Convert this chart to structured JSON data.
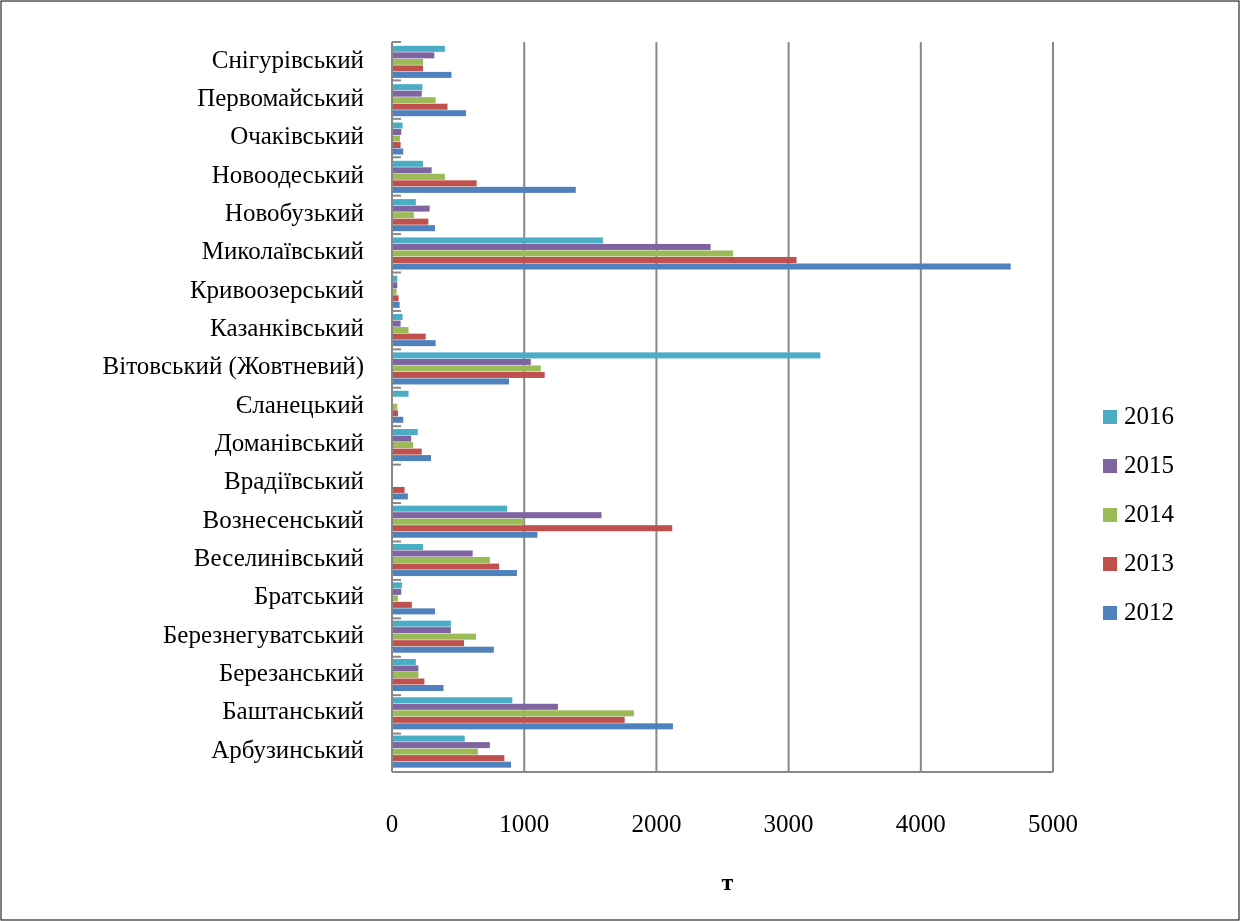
{
  "chart_data": {
    "type": "bar",
    "orientation": "horizontal",
    "xlabel": "т",
    "categories": [
      "Снігурівський",
      "Первомайський",
      "Очаківський",
      "Новоодеський",
      "Новобузький",
      "Миколаївський",
      "Кривоозерський",
      "Казанківський",
      "Вітовський (Жовтневий)",
      "Єланецький",
      "Доманівський",
      "Врадіївський",
      "Вознесенський",
      "Веселинівський",
      "Братський",
      "Березнегуватський",
      "Березанський",
      "Баштанський",
      "Арбузинський"
    ],
    "series": [
      {
        "name": "2012",
        "color": "#4f81bd",
        "values": [
          450,
          560,
          85,
          1390,
          325,
          4680,
          58,
          330,
          885,
          85,
          295,
          120,
          1100,
          945,
          325,
          770,
          390,
          2125,
          900
        ]
      },
      {
        "name": "2013",
        "color": "#c0504d",
        "values": [
          235,
          420,
          65,
          640,
          275,
          3060,
          50,
          255,
          1155,
          45,
          225,
          95,
          2120,
          810,
          150,
          545,
          245,
          1760,
          850
        ]
      },
      {
        "name": "2014",
        "color": "#9bbb59",
        "values": [
          235,
          330,
          60,
          400,
          165,
          2580,
          35,
          125,
          1125,
          40,
          160,
          null,
          1000,
          740,
          45,
          635,
          200,
          1830,
          650
        ]
      },
      {
        "name": "2015",
        "color": "#8064a2",
        "values": [
          320,
          225,
          70,
          300,
          285,
          2410,
          40,
          65,
          1050,
          null,
          145,
          null,
          1585,
          610,
          70,
          445,
          200,
          1255,
          740
        ]
      },
      {
        "name": "2016",
        "color": "#4bacc6",
        "values": [
          400,
          230,
          80,
          235,
          180,
          1595,
          40,
          80,
          3240,
          125,
          195,
          null,
          870,
          235,
          75,
          445,
          180,
          910,
          550
        ]
      }
    ],
    "xlim": [
      0,
      5000
    ],
    "xticks": [
      0,
      1000,
      2000,
      3000,
      4000,
      5000
    ],
    "grid": "x",
    "legend": "right"
  }
}
